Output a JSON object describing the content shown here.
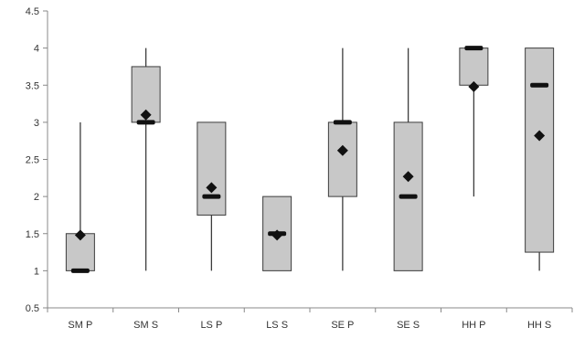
{
  "chart_data": {
    "type": "box",
    "ylim": [
      0.5,
      4.5
    ],
    "yticks": [
      0.5,
      1,
      1.5,
      2,
      2.5,
      3,
      3.5,
      4,
      4.5
    ],
    "ytick_labels": [
      "0.5",
      "1",
      "1.5",
      "2",
      "2.5",
      "3",
      "3.5",
      "4",
      "4.5"
    ],
    "grid": false,
    "categories": [
      "SM P",
      "SM S",
      "LS P",
      "LS S",
      "SE P",
      "SE S",
      "HH P",
      "HH S"
    ],
    "boxes": [
      {
        "label": "SM P",
        "min": 1,
        "q1": 1,
        "median": 1,
        "q3": 1.5,
        "max": 3,
        "mean": 1.48
      },
      {
        "label": "SM S",
        "min": 1,
        "q1": 3,
        "median": 3,
        "q3": 3.75,
        "max": 4,
        "mean": 3.1
      },
      {
        "label": "LS P",
        "min": 1,
        "q1": 1.75,
        "median": 2,
        "q3": 3,
        "max": 3,
        "mean": 2.12
      },
      {
        "label": "LS S",
        "min": 1,
        "q1": 1,
        "median": 1.5,
        "q3": 2,
        "max": 2,
        "mean": 1.48
      },
      {
        "label": "SE P",
        "min": 1,
        "q1": 2,
        "median": 3,
        "q3": 3,
        "max": 4,
        "mean": 2.62
      },
      {
        "label": "SE S",
        "min": 1,
        "q1": 1,
        "median": 2,
        "q3": 3,
        "max": 4,
        "mean": 2.27
      },
      {
        "label": "HH P",
        "min": 2,
        "q1": 3.5,
        "median": 4,
        "q3": 4,
        "max": 4,
        "mean": 3.48
      },
      {
        "label": "HH S",
        "min": 1,
        "q1": 1.25,
        "median": 3.5,
        "q3": 4,
        "max": 4,
        "mean": 2.82
      }
    ],
    "colors": {
      "box_fill": "#c8c8c8",
      "box_stroke": "#3c3c3c",
      "whisker": "#3c3c3c",
      "median": "#111111",
      "mean_marker": "#111111",
      "axis": "#888888"
    }
  }
}
